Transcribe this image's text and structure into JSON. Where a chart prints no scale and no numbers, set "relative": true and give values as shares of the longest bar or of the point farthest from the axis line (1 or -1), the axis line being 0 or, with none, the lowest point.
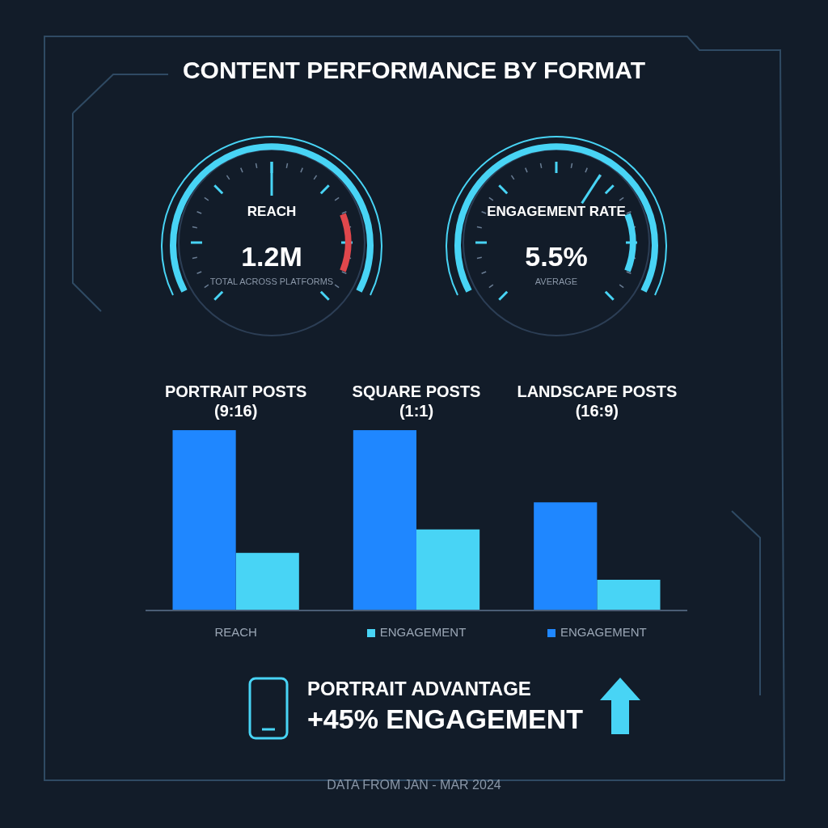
{
  "chart_data": [
    {
      "type": "other",
      "title": "CONTENT PERFORMANCE BY FORMAT"
    },
    {
      "type": "other",
      "title": "REACH",
      "annotations": [
        "1.2M",
        "TOTAL ACROSS PLATFORMS"
      ]
    },
    {
      "type": "other",
      "title": "ENGAGEMENT RATE",
      "annotations": [
        "5.5%",
        "AVERAGE"
      ]
    },
    {
      "type": "bar",
      "relative": true,
      "categories": [
        "PORTRAIT POSTS (9:16)",
        "SQUARE POSTS (1:1)",
        "LANDSCAPE POSTS (16:9)"
      ],
      "series": [
        {
          "color": "#1f87ff",
          "values": [
            1,
            1,
            0.6
          ]
        },
        {
          "color": "#48d4f5",
          "values": [
            0.32,
            0.45,
            0.17
          ]
        }
      ],
      "annotations": [
        "REACH",
        "ENGAGEMENT",
        "ENGAGEMENT"
      ]
    },
    {
      "type": "other",
      "title": "PORTRAIT ADVANTAGE",
      "annotations": [
        "+45% ENGAGEMENT",
        "DATA FROM JAN - MAR 2024"
      ]
    }
  ]
}
